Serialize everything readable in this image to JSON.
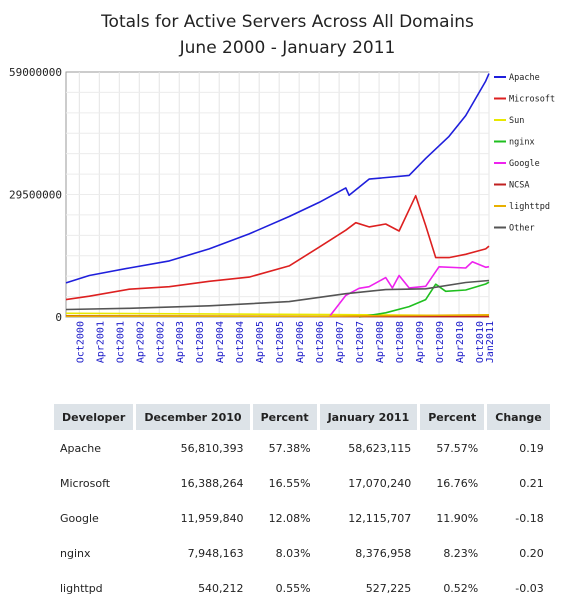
{
  "chart_data": {
    "type": "line",
    "title": "Totals for Active Servers Across All Domains",
    "subtitle": "June 2000 - January 2011",
    "ylim": [
      0,
      59000000
    ],
    "y_ticks": [
      "0",
      "29500000",
      "59000000"
    ],
    "x_ticks": [
      "Oct2000",
      "Apr2001",
      "Oct2001",
      "Apr2002",
      "Oct2002",
      "Apr2003",
      "Oct2003",
      "Apr2004",
      "Oct2004",
      "Apr2005",
      "Oct2005",
      "Apr2006",
      "Oct2006",
      "Apr2007",
      "Oct2007",
      "Apr2008",
      "Oct2008",
      "Apr2009",
      "Oct2009",
      "Apr2010",
      "Oct2010",
      "Jan2011"
    ],
    "legend_position": "right",
    "grid": true,
    "series": [
      {
        "name": "Apache",
        "color": "#1f1fdc",
        "points": [
          [
            "2000-06",
            8200000
          ],
          [
            "2001-01",
            10000000
          ],
          [
            "2002-01",
            11800000
          ],
          [
            "2003-01",
            13500000
          ],
          [
            "2004-01",
            16400000
          ],
          [
            "2005-01",
            20000000
          ],
          [
            "2006-01",
            24200000
          ],
          [
            "2006-10",
            27600000
          ],
          [
            "2007-06",
            31100000
          ],
          [
            "2007-07",
            29300000
          ],
          [
            "2008-01",
            33200000
          ],
          [
            "2009-01",
            34100000
          ],
          [
            "2009-06",
            38200000
          ],
          [
            "2010-01",
            43500000
          ],
          [
            "2010-06",
            48500000
          ],
          [
            "2010-12",
            56810393
          ],
          [
            "2011-01",
            58623115
          ]
        ]
      },
      {
        "name": "Microsoft",
        "color": "#dd2020",
        "points": [
          [
            "2000-06",
            4200000
          ],
          [
            "2001-01",
            5000000
          ],
          [
            "2002-01",
            6700000
          ],
          [
            "2003-01",
            7300000
          ],
          [
            "2004-01",
            8600000
          ],
          [
            "2005-01",
            9600000
          ],
          [
            "2006-01",
            12300000
          ],
          [
            "2006-10",
            16800000
          ],
          [
            "2007-06",
            20900000
          ],
          [
            "2007-09",
            22700000
          ],
          [
            "2008-01",
            21700000
          ],
          [
            "2008-06",
            22400000
          ],
          [
            "2008-10",
            20700000
          ],
          [
            "2009-03",
            29200000
          ],
          [
            "2009-06",
            22000000
          ],
          [
            "2009-09",
            14300000
          ],
          [
            "2010-01",
            14300000
          ],
          [
            "2010-06",
            15100000
          ],
          [
            "2010-12",
            16388264
          ],
          [
            "2011-01",
            17070240
          ]
        ]
      },
      {
        "name": "Sun",
        "color": "#e8e800",
        "points": [
          [
            "2000-06",
            900000
          ],
          [
            "2007-01",
            600000
          ],
          [
            "2011-01",
            300000
          ]
        ]
      },
      {
        "name": "nginx",
        "color": "#1fbf1f",
        "points": [
          [
            "2007-10",
            0
          ],
          [
            "2008-06",
            1000000
          ],
          [
            "2009-01",
            2500000
          ],
          [
            "2009-06",
            4200000
          ],
          [
            "2009-09",
            7900000
          ],
          [
            "2009-12",
            6200000
          ],
          [
            "2010-06",
            6500000
          ],
          [
            "2010-12",
            7948163
          ],
          [
            "2011-01",
            8376958
          ]
        ]
      },
      {
        "name": "Google",
        "color": "#ee22ee",
        "points": [
          [
            "2007-01",
            0
          ],
          [
            "2007-06",
            5200000
          ],
          [
            "2007-10",
            6900000
          ],
          [
            "2008-01",
            7300000
          ],
          [
            "2008-06",
            9500000
          ],
          [
            "2008-08",
            7000000
          ],
          [
            "2008-10",
            10000000
          ],
          [
            "2009-01",
            7000000
          ],
          [
            "2009-06",
            7400000
          ],
          [
            "2009-10",
            12100000
          ],
          [
            "2010-06",
            11800000
          ],
          [
            "2010-08",
            13300000
          ],
          [
            "2010-12",
            11959840
          ],
          [
            "2011-01",
            12115707
          ]
        ]
      },
      {
        "name": "NCSA",
        "color": "#c02020",
        "points": [
          [
            "2000-06",
            300000
          ],
          [
            "2011-01",
            100000
          ]
        ]
      },
      {
        "name": "lighttpd",
        "color": "#e8b000",
        "points": [
          [
            "2000-06",
            200000
          ],
          [
            "2007-01",
            200000
          ],
          [
            "2011-01",
            527225
          ]
        ]
      },
      {
        "name": "Other",
        "color": "#555555",
        "points": [
          [
            "2000-06",
            1800000
          ],
          [
            "2002-01",
            2100000
          ],
          [
            "2004-01",
            2700000
          ],
          [
            "2006-01",
            3700000
          ],
          [
            "2007-06",
            5600000
          ],
          [
            "2008-06",
            6600000
          ],
          [
            "2009-06",
            6800000
          ],
          [
            "2010-06",
            8300000
          ],
          [
            "2011-01",
            8800000
          ]
        ]
      }
    ]
  },
  "table": {
    "headers": [
      "Developer",
      "December 2010",
      "Percent",
      "January 2011",
      "Percent",
      "Change"
    ],
    "rows": [
      [
        "Apache",
        "56,810,393",
        "57.38%",
        "58,623,115",
        "57.57%",
        "0.19"
      ],
      [
        "Microsoft",
        "16,388,264",
        "16.55%",
        "17,070,240",
        "16.76%",
        "0.21"
      ],
      [
        "Google",
        "11,959,840",
        "12.08%",
        "12,115,707",
        "11.90%",
        "-0.18"
      ],
      [
        "nginx",
        "7,948,163",
        "8.03%",
        "8,376,958",
        "8.23%",
        "0.20"
      ],
      [
        "lighttpd",
        "540,212",
        "0.55%",
        "527,225",
        "0.52%",
        "-0.03"
      ]
    ]
  }
}
